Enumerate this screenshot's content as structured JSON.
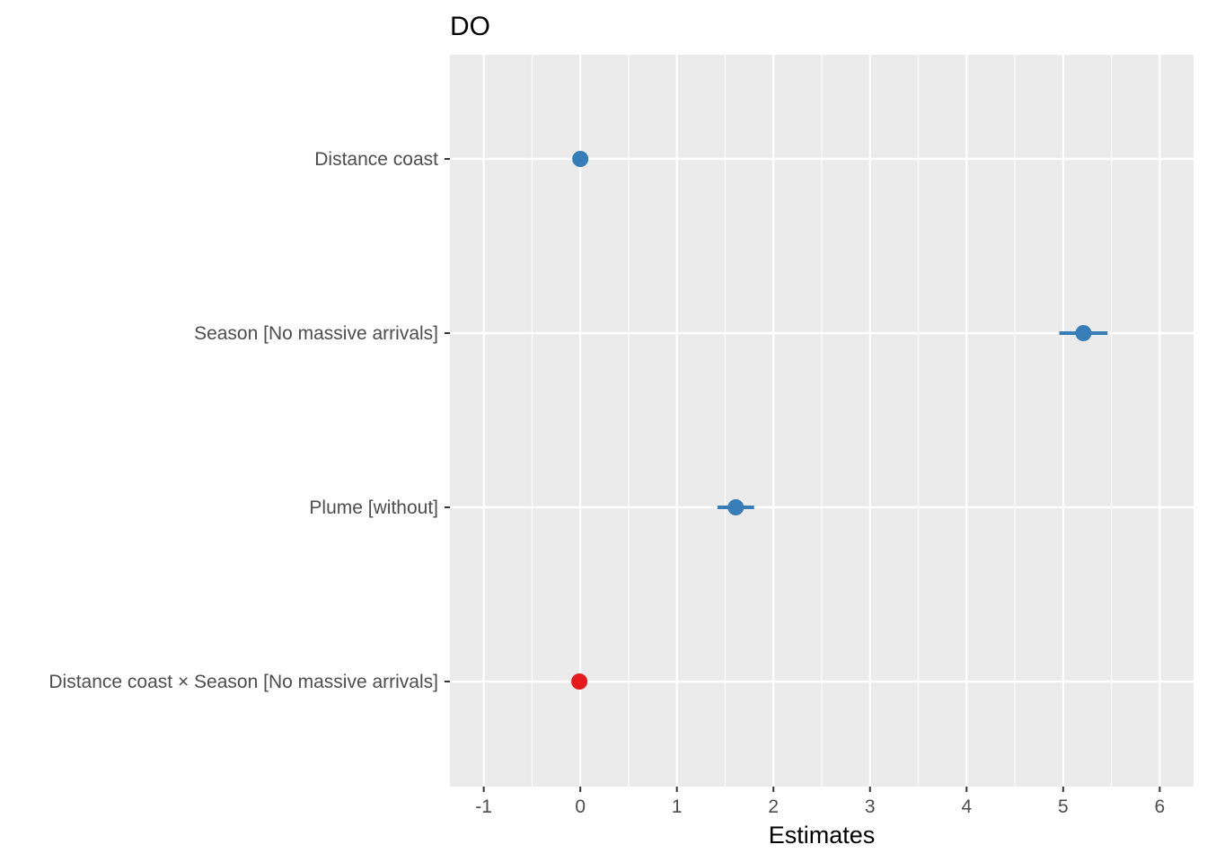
{
  "chart_data": {
    "type": "scatter",
    "subtype": "forest-plot",
    "title": "DO",
    "xlabel": "Estimates",
    "ylabel": "",
    "xlim": [
      -1.35,
      6.35
    ],
    "x_ticks": [
      -1,
      0,
      1,
      2,
      3,
      4,
      5,
      6
    ],
    "x_tick_labels": [
      "-1",
      "0",
      "1",
      "2",
      "3",
      "4",
      "5",
      "6"
    ],
    "grid": true,
    "terms": [
      {
        "label": "Distance coast",
        "estimate": 0.0,
        "ci_low": -0.01,
        "ci_high": 0.01,
        "color": "#377EB8"
      },
      {
        "label": "Season [No massive arrivals]",
        "estimate": 5.21,
        "ci_low": 4.96,
        "ci_high": 5.46,
        "color": "#377EB8"
      },
      {
        "label": "Plume [without]",
        "estimate": 1.61,
        "ci_low": 1.42,
        "ci_high": 1.8,
        "color": "#377EB8"
      },
      {
        "label": "Distance coast × Season [No massive arrivals]",
        "estimate": -0.01,
        "ci_low": -0.02,
        "ci_high": 0.0,
        "color": "#E41A1C"
      }
    ]
  }
}
